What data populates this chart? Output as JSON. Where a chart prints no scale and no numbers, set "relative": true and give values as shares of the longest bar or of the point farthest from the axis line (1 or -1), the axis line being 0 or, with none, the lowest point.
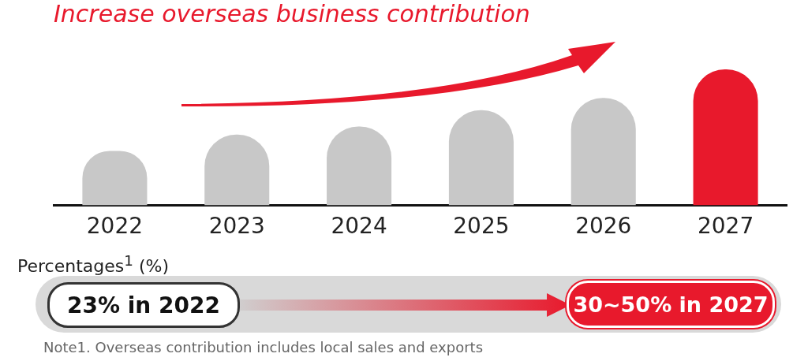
{
  "chart_data": {
    "type": "bar",
    "title": "Increase overseas business contribution",
    "relative": true,
    "categories": [
      "2022",
      "2023",
      "2024",
      "2025",
      "2026",
      "2027"
    ],
    "values": [
      0.4,
      0.52,
      0.58,
      0.7,
      0.79,
      1
    ],
    "colors": [
      "#c8c8c8",
      "#c8c8c8",
      "#c8c8c8",
      "#c8c8c8",
      "#c8c8c8",
      "#e8192c"
    ],
    "annotations": [
      "Percentages$^{1}$ (%)",
      "23% in 2022",
      "30~50% in 2027",
      "Note1. Overseas contribution includes local sales and exports"
    ]
  }
}
